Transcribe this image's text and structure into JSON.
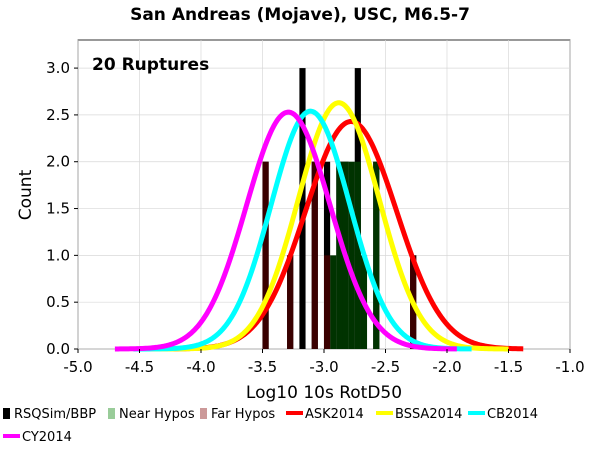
{
  "chart_data": {
    "type": "bar",
    "title": "San Andreas (Mojave), USC, M6.5-7",
    "annotation": "20 Ruptures",
    "xlabel": "Log10 10s RotD50",
    "ylabel": "Count",
    "xlim": [
      -5.0,
      -1.0
    ],
    "ylim": [
      0.0,
      3.3
    ],
    "x_ticks": [
      -5.0,
      -4.5,
      -4.0,
      -3.5,
      -3.0,
      -2.5,
      -2.0,
      -1.5,
      -1.0
    ],
    "x_tick_labels": [
      "-5.0",
      "-4.5",
      "-4.0",
      "-3.5",
      "-3.0",
      "-2.5",
      "-2.0",
      "-1.5",
      "-1.0"
    ],
    "y_ticks": [
      0.0,
      0.5,
      1.0,
      1.5,
      2.0,
      2.5,
      3.0
    ],
    "y_tick_labels": [
      "0.0",
      "0.5",
      "1.0",
      "1.5",
      "2.0",
      "2.5",
      "3.0"
    ],
    "grid": true,
    "bin_width": 0.05,
    "histograms": [
      {
        "name": "RSQSim/BBP",
        "color": "#000000",
        "bins": [
          {
            "x": -3.475,
            "value": 2
          },
          {
            "x": -3.275,
            "value": 1
          },
          {
            "x": -3.175,
            "value": 3
          },
          {
            "x": -3.075,
            "value": 2
          },
          {
            "x": -2.975,
            "value": 2
          },
          {
            "x": -2.875,
            "value": 2
          },
          {
            "x": -2.825,
            "value": 2
          },
          {
            "x": -2.725,
            "value": 3
          },
          {
            "x": -2.575,
            "value": 2
          },
          {
            "x": -2.275,
            "value": 1
          }
        ]
      },
      {
        "name": "Near Hypos",
        "color": "#003300",
        "bins": [
          {
            "x": -2.925,
            "value": 1
          },
          {
            "x": -2.875,
            "value": 2
          },
          {
            "x": -2.825,
            "value": 2
          },
          {
            "x": -2.775,
            "value": 2
          },
          {
            "x": -2.725,
            "value": 2
          },
          {
            "x": -2.675,
            "value": 1
          },
          {
            "x": -2.575,
            "value": 2
          }
        ]
      },
      {
        "name": "Far Hypos",
        "color": "#3a0000",
        "bins": [
          {
            "x": -3.475,
            "value": 2
          },
          {
            "x": -3.275,
            "value": 1
          },
          {
            "x": -3.075,
            "value": 2
          },
          {
            "x": -2.975,
            "value": 1
          },
          {
            "x": -2.275,
            "value": 1
          }
        ]
      }
    ],
    "curves": [
      {
        "name": "ASK2014",
        "color": "#ff0000",
        "mean": -2.78,
        "sigma": 0.37,
        "peak": 2.43,
        "x_range": [
          -4.35,
          -1.38
        ]
      },
      {
        "name": "BSSA2014",
        "color": "#ffff00",
        "mean": -2.88,
        "sigma": 0.33,
        "peak": 2.63,
        "x_range": [
          -4.45,
          -1.5
        ]
      },
      {
        "name": "CB2014",
        "color": "#00ffff",
        "mean": -3.11,
        "sigma": 0.32,
        "peak": 2.54,
        "x_range": [
          -4.55,
          -1.8
        ]
      },
      {
        "name": "CY2014",
        "color": "#ff00ff",
        "mean": -3.29,
        "sigma": 0.34,
        "peak": 2.53,
        "x_range": [
          -4.7,
          -1.92
        ]
      }
    ],
    "legend": {
      "placement": "bottom",
      "entries": [
        {
          "label": "RSQSim/BBP",
          "color": "#000000",
          "style": "box"
        },
        {
          "label": "Near Hypos",
          "color": "#99cc99",
          "style": "box"
        },
        {
          "label": "Far Hypos",
          "color": "#cc9999",
          "style": "box"
        },
        {
          "label": "ASK2014",
          "color": "#ff0000",
          "style": "line"
        },
        {
          "label": "BSSA2014",
          "color": "#ffff00",
          "style": "line"
        },
        {
          "label": "CB2014",
          "color": "#00ffff",
          "style": "line"
        },
        {
          "label": "CY2014",
          "color": "#ff00ff",
          "style": "line"
        }
      ]
    }
  }
}
